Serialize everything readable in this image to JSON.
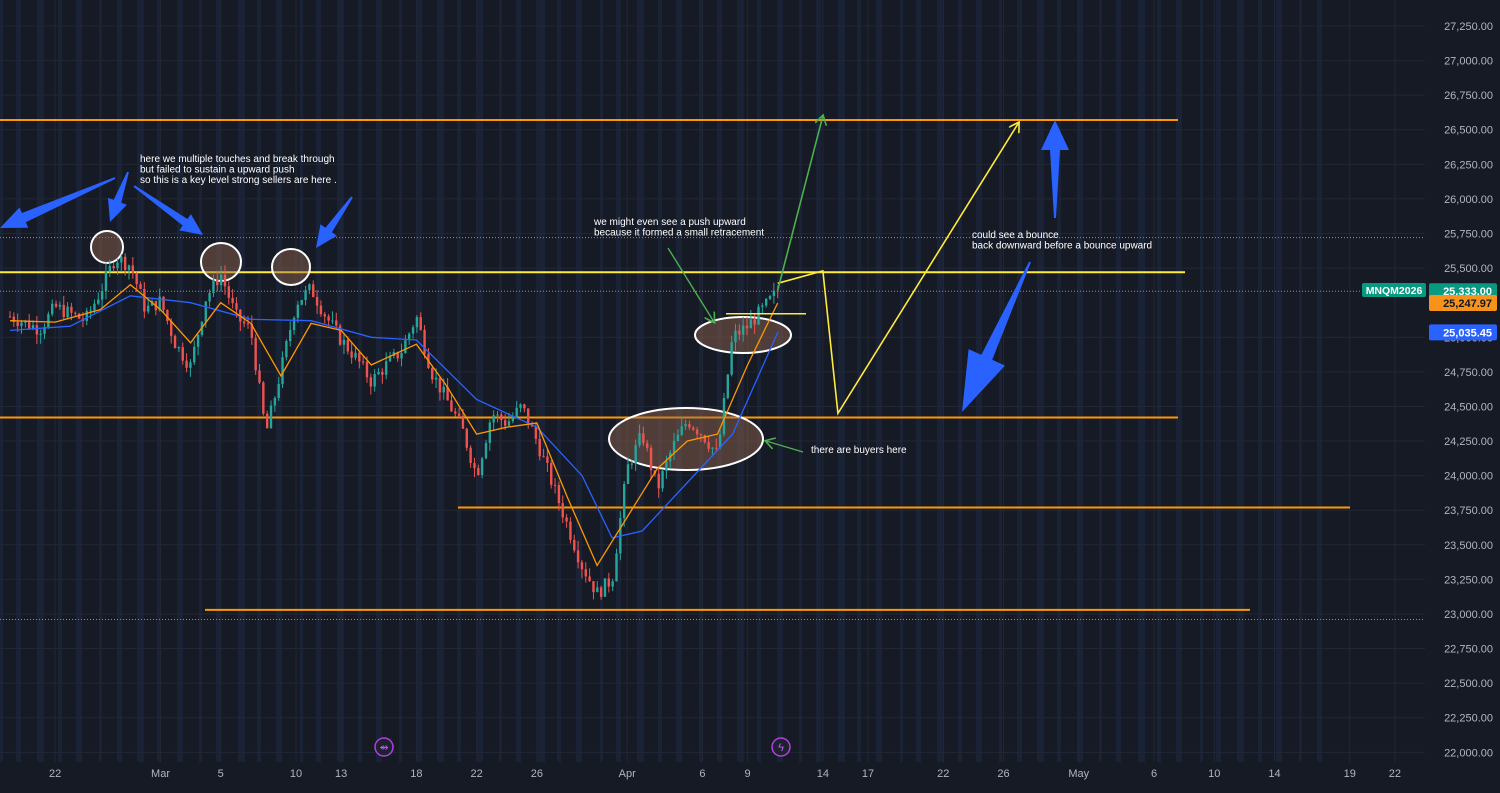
{
  "colors": {
    "background": "#161a25",
    "session_shade": "#1a2236",
    "grid": "#222735",
    "up_candle": "#26a69a",
    "down_candle": "#ef5350",
    "fast_ma": "#ff9800",
    "slow_ma": "#2962ff",
    "support_resistance": "#ff9800",
    "key_level_yellow": "#ffeb3b",
    "annotation_blue_arrow": "#2962ff",
    "annotation_green_arrow": "#4caf50",
    "axis_text": "#b2b5be",
    "symbol_badge": "#089981",
    "price_badge_orange": "#f7931a",
    "price_badge_blue": "#2962ff"
  },
  "chart_data": {
    "type": "candlestick",
    "symbol": "MNQM2026",
    "x_axis": {
      "tick_labels": [
        "22",
        "Mar",
        "5",
        "10",
        "13",
        "18",
        "22",
        "26",
        "Apr",
        "6",
        "9",
        "14",
        "17",
        "22",
        "26",
        "May",
        "6",
        "10",
        "14",
        "19",
        "22"
      ],
      "range": [
        "2026-02-19",
        "2026-05-24"
      ]
    },
    "y_axis": {
      "tick_labels": [
        "27,250.00",
        "27,000.00",
        "26,750.00",
        "26,500.00",
        "26,250.00",
        "26,000.00",
        "25,750.00",
        "25,500.00",
        "25,000.00",
        "24,750.00",
        "24,500.00",
        "24,250.00",
        "24,000.00",
        "23,750.00",
        "23,500.00",
        "23,250.00",
        "23,000.00",
        "22,750.00",
        "22,500.00",
        "22,250.00",
        "22,000.00"
      ],
      "range": [
        21930,
        27380
      ]
    },
    "price_labels": [
      {
        "text": "MNQM2026",
        "kind": "symbol"
      },
      {
        "text": "25,333.00",
        "value": 25333,
        "kind": "last"
      },
      {
        "text": "25,247.97",
        "value": 25247.97,
        "kind": "fast_ma"
      },
      {
        "text": "25,035.45",
        "value": 25035.45,
        "kind": "slow_ma"
      }
    ],
    "horizontal_levels": [
      {
        "price": 26570,
        "color": "orange"
      },
      {
        "price": 25470,
        "color": "yellow"
      },
      {
        "price": 24420,
        "color": "orange"
      },
      {
        "price": 23770,
        "color": "orange"
      },
      {
        "price": 23030,
        "color": "orange"
      }
    ],
    "dotted_levels": [
      25720,
      25333,
      22960
    ],
    "close_path": [
      [
        "2026-02-19",
        25150
      ],
      [
        "2026-02-21",
        25060
      ],
      [
        "2026-02-22",
        25220
      ],
      [
        "2026-02-24",
        25120
      ],
      [
        "2026-02-25",
        25330
      ],
      [
        "2026-02-26",
        25580
      ],
      [
        "2026-02-27",
        25520
      ],
      [
        "2026-02-28",
        25200
      ],
      [
        "2026-03-01",
        25260
      ],
      [
        "2026-03-02",
        24950
      ],
      [
        "2026-03-03",
        24790
      ],
      [
        "2026-03-04",
        25280
      ],
      [
        "2026-03-05",
        25460
      ],
      [
        "2026-03-06",
        25150
      ],
      [
        "2026-03-07",
        25050
      ],
      [
        "2026-03-08",
        24300
      ],
      [
        "2026-03-09",
        24760
      ],
      [
        "2026-03-10",
        25250
      ],
      [
        "2026-03-11",
        25350
      ],
      [
        "2026-03-12",
        25150
      ],
      [
        "2026-03-13",
        24980
      ],
      [
        "2026-03-14",
        24850
      ],
      [
        "2026-03-15",
        24680
      ],
      [
        "2026-03-16",
        24800
      ],
      [
        "2026-03-17",
        24900
      ],
      [
        "2026-03-18",
        25150
      ],
      [
        "2026-03-19",
        24750
      ],
      [
        "2026-03-20",
        24550
      ],
      [
        "2026-03-21",
        24350
      ],
      [
        "2026-03-22",
        24000
      ],
      [
        "2026-03-23",
        24450
      ],
      [
        "2026-03-24",
        24380
      ],
      [
        "2026-03-25",
        24500
      ],
      [
        "2026-03-26",
        24250
      ],
      [
        "2026-03-27",
        23950
      ],
      [
        "2026-03-28",
        23650
      ],
      [
        "2026-03-29",
        23350
      ],
      [
        "2026-03-30",
        23150
      ],
      [
        "2026-03-31",
        23250
      ],
      [
        "2026-04-01",
        24050
      ],
      [
        "2026-04-02",
        24300
      ],
      [
        "2026-04-03",
        23900
      ],
      [
        "2026-04-04",
        24200
      ],
      [
        "2026-04-05",
        24400
      ],
      [
        "2026-04-06",
        24300
      ],
      [
        "2026-04-07",
        24150
      ],
      [
        "2026-04-08",
        25000
      ],
      [
        "2026-04-09",
        25080
      ],
      [
        "2026-04-10",
        25200
      ],
      [
        "2026-04-11",
        25333
      ]
    ],
    "fast_ma_path": [
      [
        "2026-02-19",
        25120
      ],
      [
        "2026-02-22",
        25110
      ],
      [
        "2026-02-25",
        25200
      ],
      [
        "2026-02-27",
        25380
      ],
      [
        "2026-03-01",
        25200
      ],
      [
        "2026-03-03",
        24960
      ],
      [
        "2026-03-05",
        25250
      ],
      [
        "2026-03-07",
        25100
      ],
      [
        "2026-03-09",
        24720
      ],
      [
        "2026-03-11",
        25100
      ],
      [
        "2026-03-13",
        25050
      ],
      [
        "2026-03-15",
        24800
      ],
      [
        "2026-03-18",
        24950
      ],
      [
        "2026-03-20",
        24650
      ],
      [
        "2026-03-22",
        24300
      ],
      [
        "2026-03-24",
        24350
      ],
      [
        "2026-03-26",
        24380
      ],
      [
        "2026-03-28",
        23850
      ],
      [
        "2026-03-30",
        23350
      ],
      [
        "2026-04-01",
        23700
      ],
      [
        "2026-04-03",
        24050
      ],
      [
        "2026-04-05",
        24250
      ],
      [
        "2026-04-07",
        24300
      ],
      [
        "2026-04-09",
        24800
      ],
      [
        "2026-04-11",
        25248
      ]
    ],
    "slow_ma_path": [
      [
        "2026-02-19",
        25050
      ],
      [
        "2026-02-23",
        25080
      ],
      [
        "2026-02-27",
        25300
      ],
      [
        "2026-03-03",
        25250
      ],
      [
        "2026-03-07",
        25130
      ],
      [
        "2026-03-11",
        25120
      ],
      [
        "2026-03-15",
        25000
      ],
      [
        "2026-03-18",
        24980
      ],
      [
        "2026-03-22",
        24550
      ],
      [
        "2026-03-26",
        24350
      ],
      [
        "2026-03-29",
        24000
      ],
      [
        "2026-03-31",
        23550
      ],
      [
        "2026-04-02",
        23600
      ],
      [
        "2026-04-05",
        23950
      ],
      [
        "2026-04-08",
        24300
      ],
      [
        "2026-04-11",
        25035
      ]
    ],
    "annotations": [
      {
        "id": "note-sellers",
        "text": [
          "here we multiple touches and break through",
          "but failed to sustain a upward push",
          "so this is a key level  strong sellers are here ."
        ]
      },
      {
        "id": "note-push",
        "text": [
          "we might even see a push upward",
          "because it formed a small retracement"
        ]
      },
      {
        "id": "note-bounce",
        "text": [
          "could see a bounce",
          "back downward before a bounce upward"
        ]
      },
      {
        "id": "note-buyers",
        "text": [
          "there are buyers here"
        ]
      }
    ],
    "yellow_projection": [
      [
        "2026-04-14",
        25480
      ],
      [
        "2026-04-15",
        24450
      ],
      [
        "2026-04-27",
        26550
      ]
    ],
    "green_projection": [
      [
        "2026-04-11",
        25340
      ],
      [
        "2026-04-14",
        26600
      ]
    ]
  }
}
